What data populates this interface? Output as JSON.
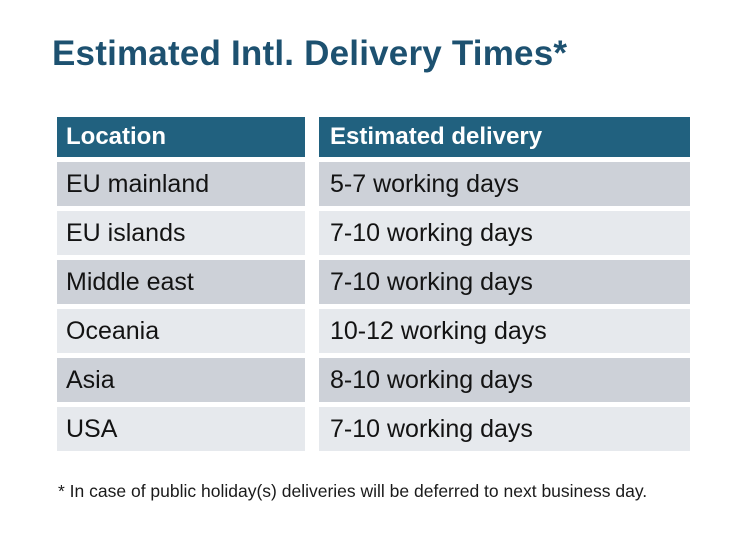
{
  "title": "Estimated Intl. Delivery Times*",
  "colors": {
    "title_text": "#1D5170",
    "header_bg": "#21617F",
    "header_text": "#FFFFFF",
    "row_odd_bg": "#CDD1D8",
    "row_even_bg": "#E6E9ED",
    "body_text": "#131313"
  },
  "table": {
    "columns": [
      "Location",
      "Estimated delivery"
    ],
    "rows": [
      {
        "location": "EU mainland",
        "delivery": "5-7 working days"
      },
      {
        "location": "EU islands",
        "delivery": "7-10 working days"
      },
      {
        "location": "Middle east",
        "delivery": "7-10 working days"
      },
      {
        "location": "Oceania",
        "delivery": "10-12 working days"
      },
      {
        "location": "Asia",
        "delivery": "8-10 working days"
      },
      {
        "location": "USA",
        "delivery": "7-10 working days"
      }
    ]
  },
  "footnote": "* In case of public holiday(s) deliveries will be deferred to next business day."
}
